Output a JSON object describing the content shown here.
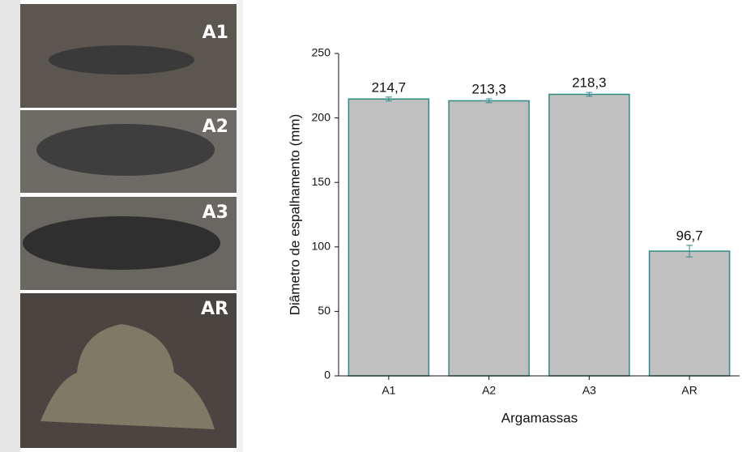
{
  "photo_labels": [
    "A1",
    "A2",
    "A3",
    "AR"
  ],
  "chart_data": {
    "type": "bar",
    "x_label": "Argamassas",
    "y_label": "Diâmetro de espalhamento (mm)",
    "categories": [
      "A1",
      "A2",
      "A3",
      "AR"
    ],
    "values": [
      214.7,
      213.3,
      218.3,
      96.7
    ],
    "value_labels": [
      "214,7",
      "213,3",
      "218,3",
      "96,7"
    ],
    "errors": [
      1.5,
      1.5,
      1.5,
      4.5
    ],
    "color": "#c0c0c0",
    "edge_color": "#2e8b88",
    "ylim": [
      0,
      250
    ],
    "yticks": [
      0,
      50,
      100,
      150,
      200,
      250
    ]
  }
}
